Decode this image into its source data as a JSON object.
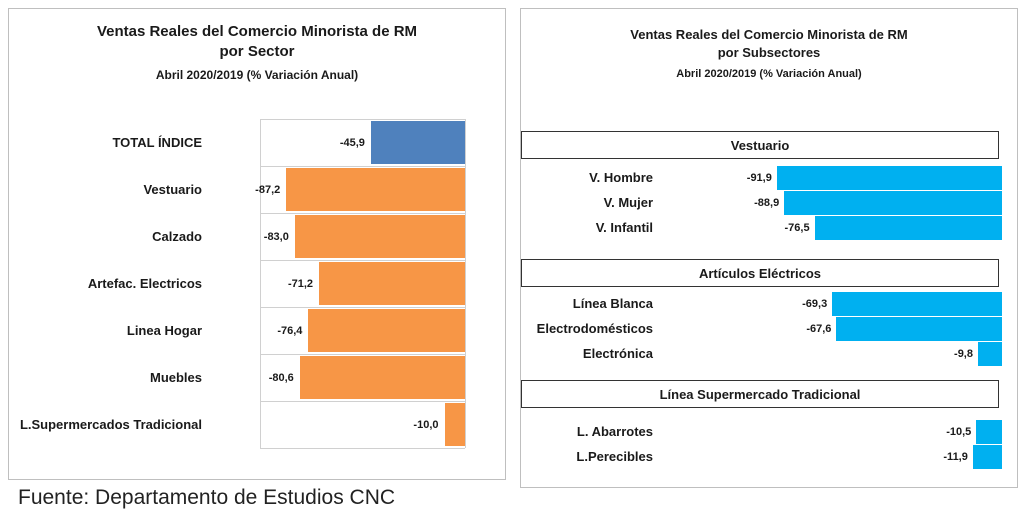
{
  "left_chart": {
    "title_line1": "Ventas Reales del Comercio Minorista de RM",
    "title_line2": "por Sector",
    "subtitle": "Abril 2020/2019 (% Variación Anual)"
  },
  "right_chart": {
    "title_line1": "Ventas Reales del Comercio Minorista de RM",
    "title_line2": "por Subsectores",
    "subtitle": "Abril 2020/2019 (% Variación Anual)"
  },
  "source_note": "Fuente: Departamento de Estudios CNC",
  "colors": {
    "total": "#4f81bd",
    "sector": "#f79646",
    "subsector": "#00b0f0"
  },
  "chart_data": [
    {
      "type": "bar",
      "orientation": "horizontal",
      "title": "Ventas Reales del Comercio Minorista de RM por Sector",
      "subtitle": "Abril 2020/2019 (% Variación Anual)",
      "categories": [
        "TOTAL ÍNDICE",
        "Vestuario",
        "Calzado",
        "Artefac. Electricos",
        "Linea Hogar",
        "Muebles",
        "L.Supermercados Tradicional"
      ],
      "values": [
        -45.9,
        -87.2,
        -83.0,
        -71.2,
        -76.4,
        -80.6,
        -10.0
      ],
      "labels": [
        "-45,9",
        "-87,2",
        "-83,0",
        "-71,2",
        "-76,4",
        "-80,6",
        "-10,0"
      ],
      "highlight_color_first": "#4f81bd",
      "bar_color": "#f79646",
      "xlim": [
        -100,
        0
      ],
      "grid": true
    },
    {
      "type": "bar",
      "orientation": "horizontal",
      "title": "Ventas Reales del Comercio Minorista de RM por Subsectores",
      "subtitle": "Abril 2020/2019 (% Variación Anual)",
      "groups": [
        {
          "name": "Vestuario",
          "categories": [
            "V. Hombre",
            "V. Mujer",
            "V. Infantil"
          ],
          "values": [
            -91.9,
            -88.9,
            -76.5
          ],
          "labels": [
            "-91,9",
            "-88,9",
            "-76,5"
          ]
        },
        {
          "name": "Artículos Eléctricos",
          "categories": [
            "Línea Blanca",
            "Electrodomésticos",
            "Electrónica"
          ],
          "values": [
            -69.3,
            -67.6,
            -9.8
          ],
          "labels": [
            "-69,3",
            "-67,6",
            "-9,8"
          ]
        },
        {
          "name": "Línea Supermercado Tradicional",
          "categories": [
            "L. Abarrotes",
            "L.Perecibles"
          ],
          "values": [
            -10.5,
            -11.9
          ],
          "labels": [
            "-10,5",
            "-11,9"
          ]
        }
      ],
      "bar_color": "#00b0f0",
      "xlim": [
        -100,
        0
      ],
      "grid": false
    }
  ]
}
